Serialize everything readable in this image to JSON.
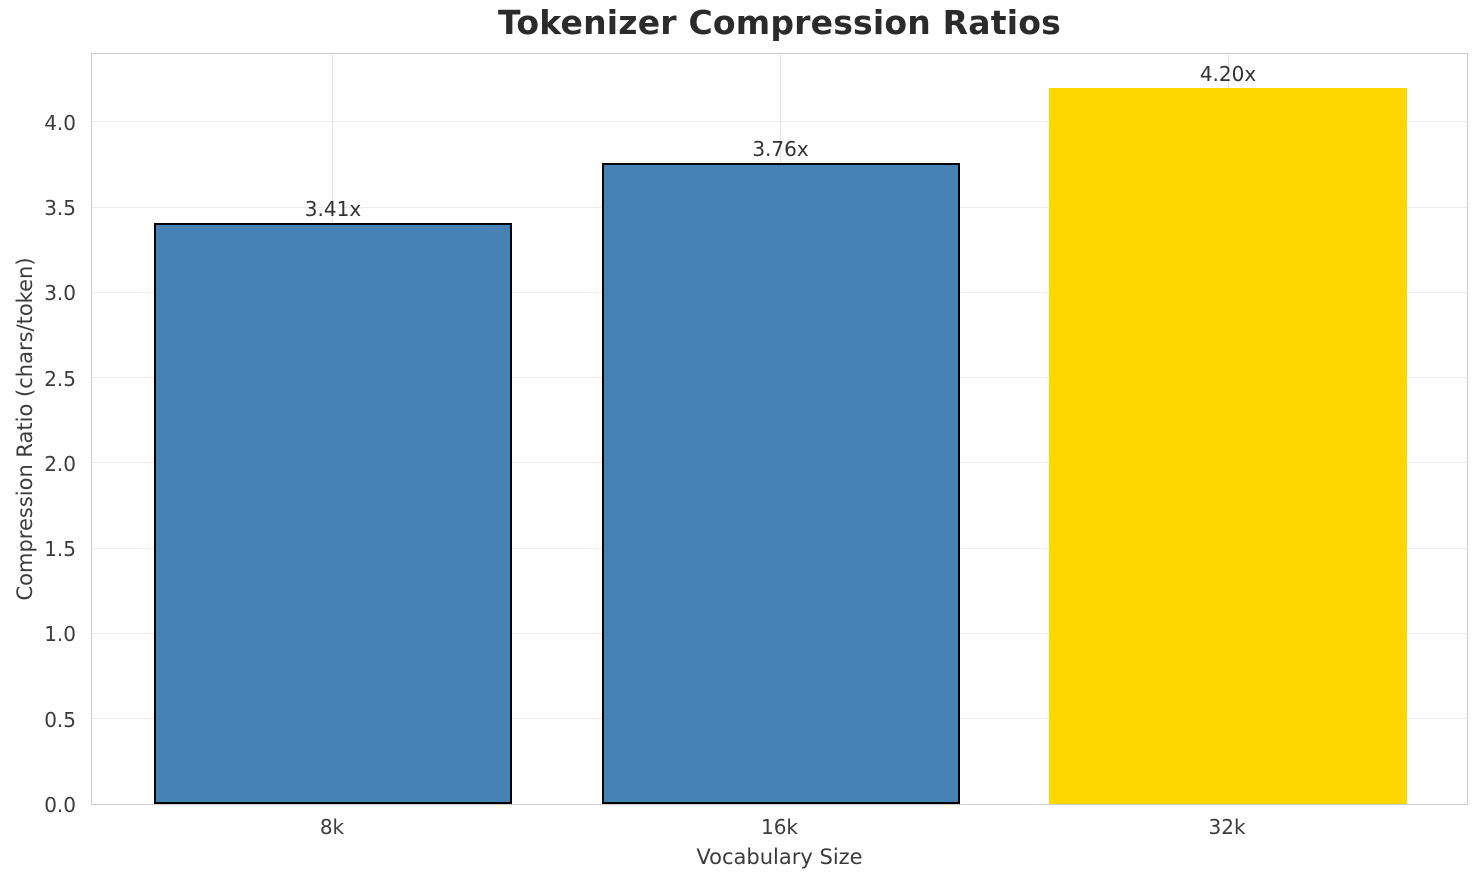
{
  "chart_data": {
    "type": "bar",
    "title": "Tokenizer Compression Ratios",
    "xlabel": "Vocabulary Size",
    "ylabel": "Compression Ratio (chars/token)",
    "categories": [
      "8k",
      "16k",
      "32k"
    ],
    "values": [
      3.41,
      3.76,
      4.2
    ],
    "bar_labels": [
      "3.41x",
      "3.76x",
      "4.20x"
    ],
    "ylim": [
      0,
      4.41
    ],
    "yticks": [
      0,
      0.5,
      1,
      1.5,
      2,
      2.5,
      3,
      3.5,
      4
    ],
    "ytick_labels": [
      "0.0",
      "0.5",
      "1.0",
      "1.5",
      "2.0",
      "2.5",
      "3.0",
      "3.5",
      "4.0"
    ],
    "grid": true,
    "legend": null,
    "bar_colors": [
      "#4682B4",
      "#4682B4",
      "#FFD700"
    ],
    "bar_edge_colors": [
      "#000000",
      "#000000",
      "none"
    ],
    "highlight_index": 2
  },
  "style": {
    "background": "#ffffff",
    "grid_color": "#ededed",
    "spine_color": "#cccccc",
    "title_color": "#2b2b2b",
    "text_color": "#3c3c3c",
    "annotation_color": "#333333"
  }
}
